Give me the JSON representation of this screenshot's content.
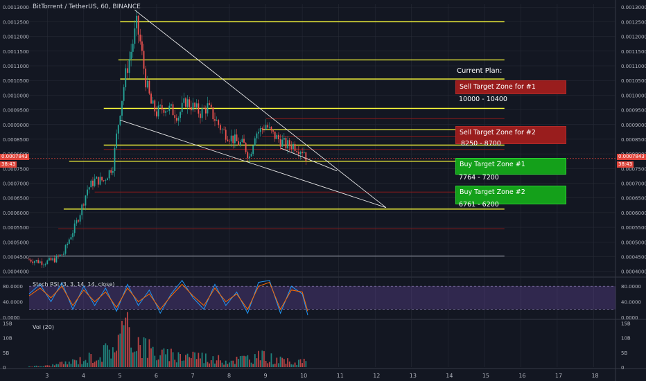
{
  "header": {
    "title": "BitTorrent / TetherUS, 60, BINANCE",
    "stoch_label": "Stoch RSI (3, 3, 14, 14, close)",
    "vol_label": "Vol (20)"
  },
  "price_badge": {
    "left_value": "0.0007843",
    "left_timer": "38:43",
    "right_value": "0.0007843",
    "right_timer": "38:43"
  },
  "plan": {
    "title": "Current Plan:",
    "zones": [
      {
        "label": "Sell Target Zone for #1",
        "range": "10000 - 10400",
        "kind": "sell"
      },
      {
        "label": "Sell Target Zone for #2",
        "range": "8250 - 8700",
        "kind": "sell"
      },
      {
        "label": "Buy Target Zone #1",
        "range": "7764 - 7200",
        "kind": "buy"
      },
      {
        "label": "Buy Target Zone #2",
        "range": "6761 - 6200",
        "kind": "buy"
      }
    ]
  },
  "colors": {
    "background": "#131722",
    "grid": "#2a2e39",
    "up": "#26a69a",
    "down": "#ef5350",
    "level_yellow": "#ffff3b",
    "level_red": "#8b1a1a",
    "stoch_k": "#2196f3",
    "stoch_d": "#ff6d00",
    "stoch_band": "#7e57c2"
  },
  "chart_data": [
    {
      "type": "candlestick",
      "title": "BitTorrent / TetherUS, 60, BINANCE",
      "x_ticks": [
        "3",
        "4",
        "5",
        "6",
        "7",
        "8",
        "9",
        "10",
        "11",
        "12",
        "13",
        "14",
        "15",
        "16",
        "17",
        "18"
      ],
      "y_ticks": [
        "0.0013000",
        "0.0012500",
        "0.0012000",
        "0.0011500",
        "0.0011000",
        "0.0010500",
        "0.0010000",
        "0.0009500",
        "0.0009000",
        "0.0008500",
        "0.0008000",
        "0.0007500",
        "0.0007000",
        "0.0006500",
        "0.0006000",
        "0.0005500",
        "0.0005000",
        "0.0004500",
        "0.0004000"
      ],
      "ylim": [
        0.000385,
        0.00131
      ],
      "xlim": [
        2.5,
        18.6
      ],
      "last_price": 0.0007843,
      "close_path": [
        [
          2.5,
          0.00044
        ],
        [
          2.9,
          0.00043
        ],
        [
          3.2,
          0.00044
        ],
        [
          3.45,
          0.000462
        ],
        [
          3.6,
          0.00051
        ],
        [
          3.75,
          0.00055
        ],
        [
          3.9,
          0.0006
        ],
        [
          4.1,
          0.00068
        ],
        [
          4.3,
          0.00071
        ],
        [
          4.55,
          0.00071
        ],
        [
          4.8,
          0.00076
        ],
        [
          4.9,
          0.00086
        ],
        [
          5.0,
          0.00095
        ],
        [
          5.15,
          0.00107
        ],
        [
          5.3,
          0.00115
        ],
        [
          5.45,
          0.00124
        ],
        [
          5.55,
          0.00118
        ],
        [
          5.7,
          0.00105
        ],
        [
          5.85,
          0.00097
        ],
        [
          6.0,
          0.00094
        ],
        [
          6.2,
          0.00096
        ],
        [
          6.4,
          0.00095
        ],
        [
          6.6,
          0.00093
        ],
        [
          6.8,
          0.00098
        ],
        [
          7.0,
          0.00096
        ],
        [
          7.2,
          0.00094
        ],
        [
          7.4,
          0.00096
        ],
        [
          7.6,
          0.00092
        ],
        [
          7.8,
          0.00088
        ],
        [
          8.0,
          0.00086
        ],
        [
          8.2,
          0.00084
        ],
        [
          8.4,
          0.00083
        ],
        [
          8.55,
          0.00079
        ],
        [
          8.7,
          0.00087
        ],
        [
          8.85,
          0.00088
        ],
        [
          9.0,
          0.0009
        ],
        [
          9.15,
          0.00087
        ],
        [
          9.35,
          0.00085
        ],
        [
          9.55,
          0.00083
        ],
        [
          9.75,
          0.00083
        ],
        [
          9.9,
          0.00082
        ],
        [
          10.05,
          0.00081
        ],
        [
          10.12,
          0.000784
        ]
      ],
      "horizontal_levels": [
        {
          "price": 0.00125,
          "x_start": 5.0,
          "x_end": 15.55,
          "color": "yellow"
        },
        {
          "price": 0.00112,
          "x_start": 4.95,
          "x_end": 15.55,
          "color": "yellow"
        },
        {
          "price": 0.001055,
          "x_start": 5.0,
          "x_end": 15.55,
          "color": "yellow"
        },
        {
          "price": 0.000955,
          "x_start": 4.55,
          "x_end": 15.55,
          "color": "yellow"
        },
        {
          "price": 0.00092,
          "x_start": 9.0,
          "x_end": 15.55,
          "color": "red"
        },
        {
          "price": 0.000882,
          "x_start": 8.9,
          "x_end": 15.55,
          "color": "yellow"
        },
        {
          "price": 0.000858,
          "x_start": 8.9,
          "x_end": 15.55,
          "color": "red"
        },
        {
          "price": 0.00083,
          "x_start": 4.55,
          "x_end": 15.55,
          "color": "yellow"
        },
        {
          "price": 0.000815,
          "x_start": 4.55,
          "x_end": 15.55,
          "color": "red"
        },
        {
          "price": 0.000775,
          "x_start": 3.6,
          "x_end": 15.55,
          "color": "yellow"
        },
        {
          "price": 0.00067,
          "x_start": 4.3,
          "x_end": 15.55,
          "color": "red"
        },
        {
          "price": 0.000612,
          "x_start": 3.45,
          "x_end": 15.55,
          "color": "yellow"
        },
        {
          "price": 0.000545,
          "x_start": 3.3,
          "x_end": 15.55,
          "color": "red"
        },
        {
          "price": 0.000452,
          "x_start": 2.5,
          "x_end": 15.55,
          "color": "gray"
        }
      ],
      "trendlines": [
        {
          "x1": 5.4,
          "y1": 0.00129,
          "x2": 12.3,
          "y2": 0.000617
        },
        {
          "x1": 5.0,
          "y1": 0.000915,
          "x2": 12.3,
          "y2": 0.000617
        },
        {
          "x1": 9.4,
          "y1": 0.00082,
          "x2": 10.95,
          "y2": 0.000742
        }
      ]
    },
    {
      "type": "line",
      "title": "Stoch RSI (3, 3, 14, 14, close)",
      "y_ticks": [
        "80.0000",
        "40.0000",
        "0.0000"
      ],
      "ylim": [
        -4,
        100
      ],
      "band": [
        20,
        80
      ],
      "series": [
        {
          "color": "#2196f3",
          "x": [
            2.5,
            2.8,
            3.1,
            3.4,
            3.7,
            4.0,
            4.3,
            4.6,
            4.9,
            5.2,
            5.5,
            5.8,
            6.1,
            6.4,
            6.7,
            7.0,
            7.3,
            7.6,
            7.9,
            8.2,
            8.5,
            8.8,
            9.1,
            9.4,
            9.7,
            10.0,
            10.15
          ],
          "values": [
            60,
            85,
            40,
            90,
            20,
            80,
            30,
            75,
            15,
            85,
            30,
            70,
            10,
            60,
            95,
            50,
            20,
            85,
            30,
            65,
            10,
            90,
            95,
            10,
            80,
            60,
            5
          ]
        },
        {
          "color": "#ff6d00",
          "x": [
            2.5,
            2.8,
            3.1,
            3.4,
            3.7,
            4.0,
            4.3,
            4.6,
            4.9,
            5.2,
            5.5,
            5.8,
            6.1,
            6.4,
            6.7,
            7.0,
            7.3,
            7.6,
            7.9,
            8.2,
            8.5,
            8.8,
            9.1,
            9.4,
            9.7,
            10.0,
            10.15
          ],
          "values": [
            55,
            75,
            50,
            80,
            30,
            70,
            40,
            65,
            25,
            75,
            40,
            60,
            20,
            55,
            85,
            55,
            30,
            75,
            40,
            60,
            20,
            80,
            90,
            20,
            70,
            65,
            15
          ]
        }
      ]
    },
    {
      "type": "bar",
      "title": "Vol (20)",
      "y_ticks": [
        "15B",
        "10B",
        "5B",
        "0"
      ],
      "ylim": [
        0,
        16
      ],
      "bars_unit": "B",
      "approx_volume_by_x": [
        [
          2.5,
          0.3
        ],
        [
          3.0,
          0.5
        ],
        [
          3.5,
          1.5
        ],
        [
          4.0,
          3.0
        ],
        [
          4.5,
          5.0
        ],
        [
          4.9,
          9.0
        ],
        [
          5.1,
          14.0
        ],
        [
          5.4,
          11.0
        ],
        [
          5.7,
          8.0
        ],
        [
          6.0,
          5.0
        ],
        [
          6.5,
          4.0
        ],
        [
          7.0,
          5.0
        ],
        [
          7.5,
          3.0
        ],
        [
          8.0,
          2.5
        ],
        [
          8.5,
          3.5
        ],
        [
          9.0,
          4.0
        ],
        [
          9.5,
          2.0
        ],
        [
          10.0,
          2.5
        ],
        [
          10.15,
          1.0
        ]
      ]
    }
  ]
}
